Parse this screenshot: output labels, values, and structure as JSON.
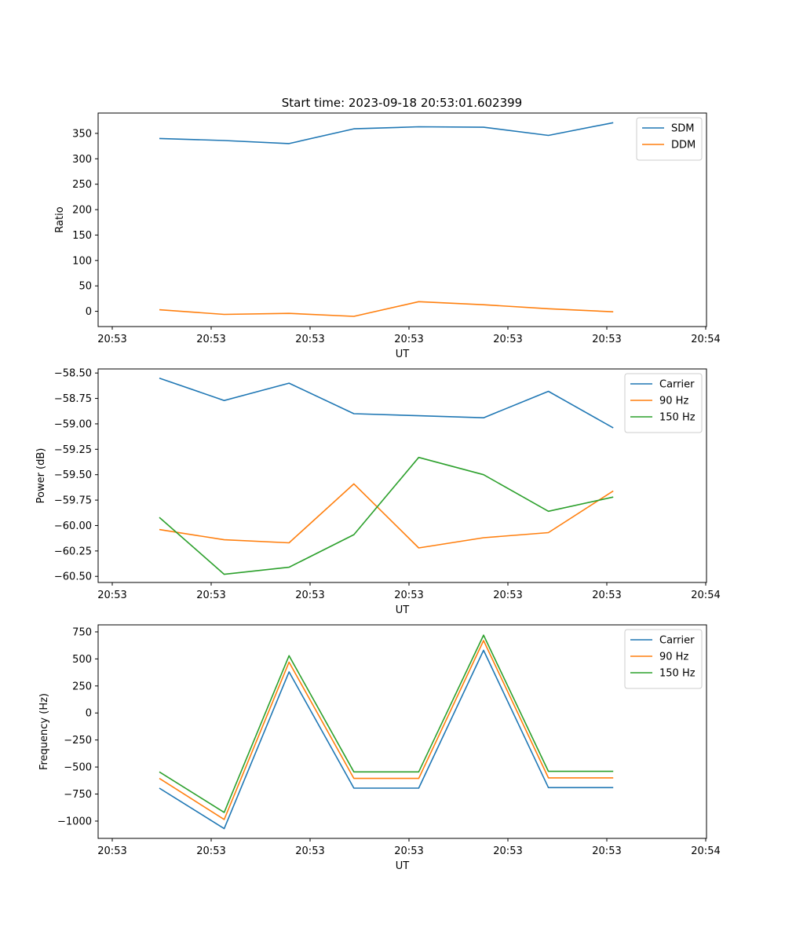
{
  "title": "Start time: 2023-09-18 20:53:01.602399",
  "chart_data": [
    {
      "type": "line",
      "xlabel": "UT",
      "ylabel": "Ratio",
      "x_ticks": [
        "20:53",
        "20:53",
        "20:53",
        "20:53",
        "20:53",
        "20:53",
        "20:54"
      ],
      "ylim": [
        -30,
        390
      ],
      "y_ticks": [
        0,
        50,
        100,
        150,
        200,
        250,
        300,
        350
      ],
      "y_tick_labels": [
        "0",
        "50",
        "100",
        "150",
        "200",
        "250",
        "300",
        "350"
      ],
      "legend": "top-right",
      "series": [
        {
          "name": "SDM",
          "color": "#1f77b4",
          "values": [
            340,
            336,
            330,
            359,
            363,
            362,
            346,
            371
          ]
        },
        {
          "name": "DDM",
          "color": "#ff7f0e",
          "values": [
            3,
            -6,
            -4,
            -10,
            19,
            13,
            5,
            -1
          ]
        }
      ]
    },
    {
      "type": "line",
      "xlabel": "UT",
      "ylabel": "Power (dB)",
      "x_ticks": [
        "20:53",
        "20:53",
        "20:53",
        "20:53",
        "20:53",
        "20:53",
        "20:54"
      ],
      "ylim": [
        -60.56,
        -58.46
      ],
      "y_ticks": [
        -58.5,
        -58.75,
        -59.0,
        -59.25,
        -59.5,
        -59.75,
        -60.0,
        -60.25,
        -60.5
      ],
      "y_tick_labels": [
        "−58.50",
        "−58.75",
        "−59.00",
        "−59.25",
        "−59.50",
        "−59.75",
        "−60.00",
        "−60.25",
        "−60.50"
      ],
      "legend": "top-right",
      "series": [
        {
          "name": "Carrier",
          "color": "#1f77b4",
          "values": [
            -58.55,
            -58.77,
            -58.6,
            -58.9,
            -58.92,
            -58.94,
            -58.68,
            -59.04
          ]
        },
        {
          "name": "90 Hz",
          "color": "#ff7f0e",
          "values": [
            -60.04,
            -60.14,
            -60.17,
            -59.59,
            -60.22,
            -60.12,
            -60.07,
            -59.66
          ]
        },
        {
          "name": "150 Hz",
          "color": "#2ca02c",
          "values": [
            -59.92,
            -60.48,
            -60.41,
            -60.09,
            -59.33,
            -59.5,
            -59.86,
            -59.72
          ]
        }
      ]
    },
    {
      "type": "line",
      "xlabel": "UT",
      "ylabel": "Frequency (Hz)",
      "x_ticks": [
        "20:53",
        "20:53",
        "20:53",
        "20:53",
        "20:53",
        "20:53",
        "20:54"
      ],
      "ylim": [
        -1160,
        815
      ],
      "y_ticks": [
        -1000,
        -750,
        -500,
        -250,
        0,
        250,
        500,
        750
      ],
      "y_tick_labels": [
        "−1000",
        "−750",
        "−500",
        "−250",
        "0",
        "250",
        "500",
        "750"
      ],
      "legend": "top-right",
      "series": [
        {
          "name": "Carrier",
          "color": "#1f77b4",
          "values": [
            -695,
            -1070,
            380,
            -695,
            -695,
            580,
            -690,
            -690
          ]
        },
        {
          "name": "90 Hz",
          "color": "#ff7f0e",
          "values": [
            -605,
            -985,
            470,
            -605,
            -605,
            670,
            -600,
            -600
          ]
        },
        {
          "name": "150 Hz",
          "color": "#2ca02c",
          "values": [
            -545,
            -920,
            530,
            -545,
            -545,
            720,
            -540,
            -540
          ]
        }
      ]
    }
  ]
}
